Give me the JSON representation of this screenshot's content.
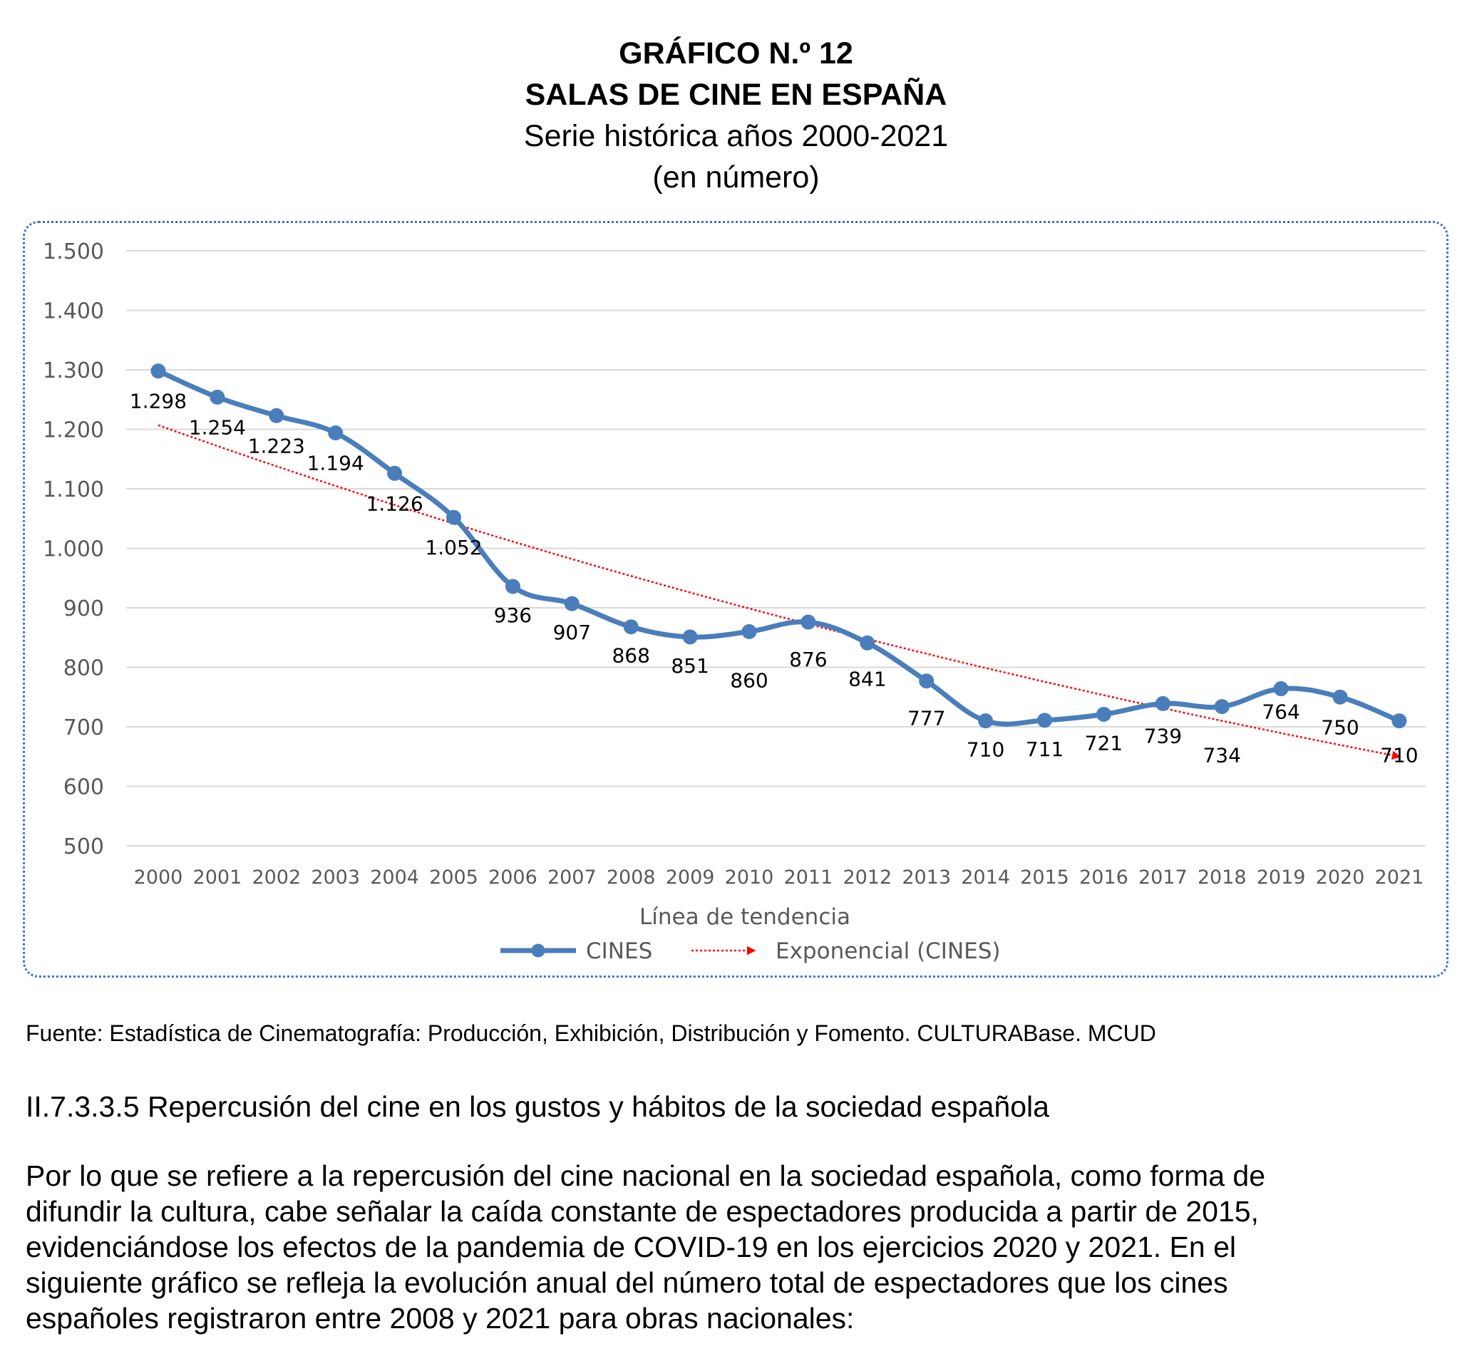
{
  "titles": {
    "figure_number": "GRÁFICO N.º 12",
    "title": "SALAS DE CINE EN ESPAÑA",
    "subtitle": "Serie histórica años 2000-2021",
    "unit": "(en número)"
  },
  "chart_data": {
    "type": "line",
    "categories": [
      "2000",
      "2001",
      "2002",
      "2003",
      "2004",
      "2005",
      "2006",
      "2007",
      "2008",
      "2009",
      "2010",
      "2011",
      "2012",
      "2013",
      "2014",
      "2015",
      "2016",
      "2017",
      "2018",
      "2019",
      "2020",
      "2021"
    ],
    "series": [
      {
        "name": "CINES",
        "values": [
          1298,
          1254,
          1223,
          1194,
          1126,
          1052,
          936,
          907,
          868,
          851,
          860,
          876,
          841,
          777,
          710,
          711,
          721,
          739,
          734,
          764,
          750,
          710
        ],
        "labels": [
          "1.298",
          "1.254",
          "1.223",
          "1.194",
          "1.126",
          "1.052",
          "936",
          "907",
          "868",
          "851",
          "860",
          "876",
          "841",
          "777",
          "710",
          "711",
          "721",
          "739",
          "734",
          "764",
          "750",
          "710"
        ],
        "color": "#4A7EBB"
      }
    ],
    "trendline": {
      "name": "Exponencial (CINES)",
      "type": "exponential",
      "start_value": 1207,
      "end_value": 650,
      "color": "#FF0000"
    },
    "ylim": [
      500,
      1500
    ],
    "yticks": [
      500,
      600,
      700,
      800,
      900,
      1000,
      1100,
      1200,
      1300,
      1400,
      1500
    ],
    "ytick_labels": [
      "500",
      "600",
      "700",
      "800",
      "900",
      "1.000",
      "1.100",
      "1.200",
      "1.300",
      "1.400",
      "1.500"
    ],
    "legend_title": "Línea de tendencia",
    "legend_placement": "bottom",
    "grid": true
  },
  "source_text": "Fuente: Estadística de Cinematografía: Producción, Exhibición, Distribución y Fomento. CULTURABase. MCUD",
  "section_heading": "II.7.3.3.5 Repercusión del cine en los gustos y hábitos de la sociedad española",
  "paragraph_lines": [
    "Por lo que se refiere a la repercusión del cine nacional en la sociedad española, como forma de",
    "difundir la cultura, cabe señalar la caída constante de espectadores producida a partir de 2015,",
    "evidenciándose los efectos de la pandemia de COVID-19 en los ejercicios 2020 y 2021. En el",
    "siguiente gráfico se refleja la evolución anual del número total de espectadores que los cines",
    "españoles registraron entre 2008 y 2021 para obras nacionales:"
  ]
}
